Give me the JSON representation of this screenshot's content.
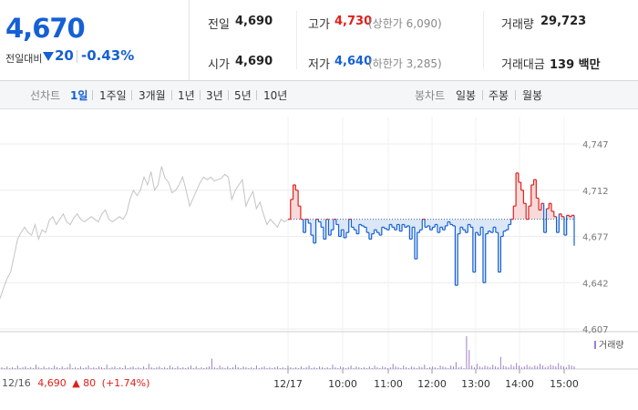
{
  "quote": {
    "current_price": "4,670",
    "change_label": "전일대비",
    "change_value": "20",
    "change_rate": "-0.43%",
    "prev_close": {
      "label": "전일",
      "value": "4,690"
    },
    "open": {
      "label": "시가",
      "value": "4,690"
    },
    "high": {
      "label": "고가",
      "value": "4,730",
      "sub": "(상한가 6,090)"
    },
    "low": {
      "label": "저가",
      "value": "4,640",
      "sub": "(하한가 3,285)"
    },
    "volume": {
      "label": "거래량",
      "value": "29,723"
    },
    "trade_amount": {
      "label": "거래대금",
      "value": "139 백만"
    },
    "colors": {
      "down": "#1560d4",
      "up": "#e0201b"
    }
  },
  "toolbar": {
    "line_chart_label": "선차트",
    "periods": [
      "1일",
      "1주일",
      "3개월",
      "1년",
      "3년",
      "5년",
      "10년"
    ],
    "selected_period": "1일",
    "candle_chart_label": "봉차트",
    "candle_periods": [
      "일봉",
      "주봉",
      "월봉"
    ]
  },
  "chart_data": {
    "type": "line",
    "y_ticks": [
      "4,747",
      "4,712",
      "4,677",
      "4,642",
      "4,607"
    ],
    "ylim": [
      4607,
      4747
    ],
    "baseline": 4690,
    "x_ticks": [
      "12/17",
      "10:00",
      "11:00",
      "12:00",
      "13:00",
      "14:00",
      "15:00"
    ],
    "volume_legend": "거래량",
    "prev_day": {
      "date": "12/16",
      "close": "4,690",
      "change": "80",
      "rate": "(+1.74%)"
    },
    "prev_day_series": [
      4630,
      4638,
      4645,
      4650,
      4662,
      4675,
      4680,
      4684,
      4680,
      4678,
      4686,
      4675,
      4682,
      4680,
      4689,
      4692,
      4686,
      4690,
      4694,
      4688,
      4686,
      4691,
      4694,
      4690,
      4688,
      4690,
      4692,
      4690,
      4688,
      4694,
      4697,
      4690,
      4688,
      4690,
      4692,
      4690,
      4694,
      4705,
      4712,
      4708,
      4712,
      4722,
      4716,
      4726,
      4712,
      4716,
      4730,
      4721,
      4718,
      4710,
      4712,
      4716,
      4722,
      4712,
      4700,
      4706,
      4712,
      4718,
      4722,
      4720,
      4722,
      4719,
      4720,
      4721,
      4724,
      4722,
      4705,
      4712,
      4716,
      4720,
      4700,
      4706,
      4711,
      4698,
      4703,
      4694,
      4686,
      4690,
      4687,
      4684,
      4690,
      4688,
      4690
    ],
    "today_series": [
      4690,
      4705,
      4716,
      4712,
      4700,
      4690,
      4680,
      4690,
      4687,
      4678,
      4672,
      4690,
      4688,
      4684,
      4675,
      4690,
      4678,
      4682,
      4690,
      4686,
      4677,
      4682,
      4676,
      4680,
      4690,
      4684,
      4682,
      4679,
      4686,
      4685,
      4684,
      4680,
      4675,
      4679,
      4682,
      4680,
      4678,
      4684,
      4683,
      4682,
      4686,
      4684,
      4682,
      4686,
      4681,
      4686,
      4684,
      4685,
      4675,
      4684,
      4660,
      4680,
      4682,
      4690,
      4684,
      4685,
      4682,
      4684,
      4686,
      4680,
      4684,
      4682,
      4685,
      4688,
      4686,
      4685,
      4640,
      4679,
      4684,
      4682,
      4680,
      4686,
      4684,
      4650,
      4680,
      4678,
      4684,
      4642,
      4679,
      4681,
      4680,
      4684,
      4680,
      4650,
      4677,
      4681,
      4682,
      4686,
      4690,
      4700,
      4725,
      4718,
      4712,
      4702,
      4690,
      4700,
      4716,
      4720,
      4706,
      4697,
      4702,
      4680,
      4698,
      4702,
      4696,
      4692,
      4680,
      4694,
      4692,
      4678,
      4693,
      4692,
      4693,
      4670
    ],
    "volume_series": [
      2,
      1,
      3,
      1,
      2,
      1,
      4,
      1,
      2,
      3,
      1,
      2,
      1,
      5,
      2,
      1,
      3,
      1,
      2,
      1,
      4,
      2,
      1,
      3,
      1,
      2,
      6,
      1,
      2,
      1,
      3,
      1,
      2,
      4,
      1,
      2,
      1,
      3,
      2,
      1,
      5,
      1,
      2,
      3,
      1,
      2,
      1,
      4,
      1,
      2,
      3,
      1,
      2,
      1,
      3,
      1,
      6,
      2,
      1,
      2,
      3,
      1,
      2,
      1,
      4,
      2,
      1,
      3,
      1,
      2,
      1,
      2,
      4,
      1,
      3,
      1,
      2,
      1,
      2,
      3,
      12,
      2,
      1,
      4,
      2,
      1,
      3,
      1,
      2,
      5,
      2,
      1,
      3,
      2,
      1,
      2,
      1,
      4,
      1,
      2,
      3,
      1,
      2,
      1,
      2,
      3,
      1,
      2,
      1,
      4,
      2,
      1,
      2,
      1,
      3,
      1,
      2,
      4,
      1,
      2,
      1,
      3,
      2,
      1,
      2,
      1,
      5,
      2,
      1,
      3,
      2,
      1,
      2,
      4,
      1,
      3,
      2,
      1,
      2,
      1,
      3,
      1,
      4,
      2,
      1,
      3,
      2,
      1,
      2,
      6,
      3,
      2,
      1,
      4,
      2,
      1,
      3,
      2,
      1,
      3,
      2,
      5,
      1,
      2,
      3,
      2,
      1,
      4,
      3,
      2,
      1,
      4,
      3,
      8,
      2,
      3,
      1,
      38,
      22,
      4,
      2,
      6,
      3,
      2,
      4,
      3,
      2,
      5,
      3,
      2,
      14,
      4,
      3,
      2,
      5,
      3,
      7,
      4,
      2,
      3,
      5,
      3,
      2,
      4,
      3,
      6,
      4,
      2,
      3,
      5,
      4,
      3,
      7,
      4,
      3,
      2,
      5,
      4,
      3
    ]
  }
}
